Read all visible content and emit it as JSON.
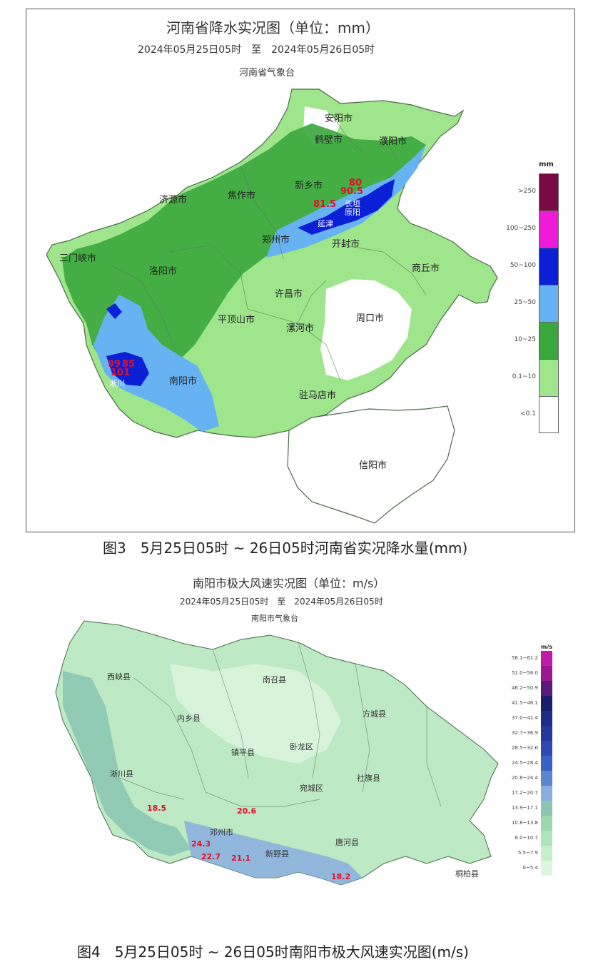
{
  "map1": {
    "title": "河南省降水实况图（单位：mm）",
    "period": "2024年05月25日05时　至　2024年05月26日05时",
    "issuer": "河南省气象台",
    "legend_unit": "mm",
    "legend": [
      {
        "label": ">250",
        "color": "#7a0a44"
      },
      {
        "label": "100~250",
        "color": "#ee1ad8"
      },
      {
        "label": "50~100",
        "color": "#0b1fd6"
      },
      {
        "label": "25~50",
        "color": "#67b2f2"
      },
      {
        "label": "10~25",
        "color": "#3aa73c"
      },
      {
        "label": "0.1~10",
        "color": "#9fe58c"
      },
      {
        "label": "<0.1",
        "color": "#ffffff"
      }
    ],
    "cities": [
      "安阳市",
      "鹤壁市",
      "濮阳市",
      "新乡市",
      "焦作市",
      "济源市",
      "三门峡市",
      "洛阳市",
      "郑州市",
      "开封市",
      "商丘市",
      "许昌市",
      "平顶山市",
      "漯河市",
      "周口市",
      "南阳市",
      "驻马店市",
      "信阳市"
    ],
    "values": [
      "80",
      "90.5",
      "81.5",
      "99",
      "85",
      "101"
    ],
    "small_labels": [
      "长垣",
      "延津",
      "原阳",
      "淅川"
    ],
    "caption": "图3　5月25日05时 ~ 26日05时河南省实况降水量(mm)"
  },
  "map2": {
    "title": "南阳市极大风速实况图（单位：m/s）",
    "period": "2024年05月25日05时　至　2024年05月26日05时",
    "issuer": "南阳市气象台",
    "legend_unit": "m/s",
    "legend": [
      {
        "label": "56.1~61.2",
        "color": "#c21aa8"
      },
      {
        "label": "51.0~56.0",
        "color": "#9a1890"
      },
      {
        "label": "46.2~50.9",
        "color": "#5a1a78"
      },
      {
        "label": "41.5~46.1",
        "color": "#1a1e6a"
      },
      {
        "label": "37.0~41.4",
        "color": "#1d2c88"
      },
      {
        "label": "32.7~36.9",
        "color": "#2438a0"
      },
      {
        "label": "28.5~32.6",
        "color": "#2d4ab4"
      },
      {
        "label": "24.5~28.4",
        "color": "#3a62c4"
      },
      {
        "label": "20.8~24.4",
        "color": "#5a86d2"
      },
      {
        "label": "17.2~20.7",
        "color": "#8aaee0"
      },
      {
        "label": "13.9~17.1",
        "color": "#8ac6b4"
      },
      {
        "label": "10.8~13.8",
        "color": "#9ad8b0"
      },
      {
        "label": "8.0~10.7",
        "color": "#ace6b8"
      },
      {
        "label": "5.5~7.9",
        "color": "#c4efca"
      },
      {
        "label": "0~5.4",
        "color": "#ddf6e0"
      }
    ],
    "counties": [
      "西峡县",
      "南召县",
      "内乡县",
      "方城县",
      "镇平县",
      "卧龙区",
      "淅川县",
      "社旗县",
      "宛城区",
      "邓州市",
      "新野县",
      "唐河县",
      "桐柏县"
    ],
    "values": [
      "18.5",
      "20.6",
      "24.3",
      "22.7",
      "21.1",
      "18.2"
    ],
    "caption": "图4　5月25日05时 ~ 26日05时南阳市极大风速实况图(m/s)"
  }
}
